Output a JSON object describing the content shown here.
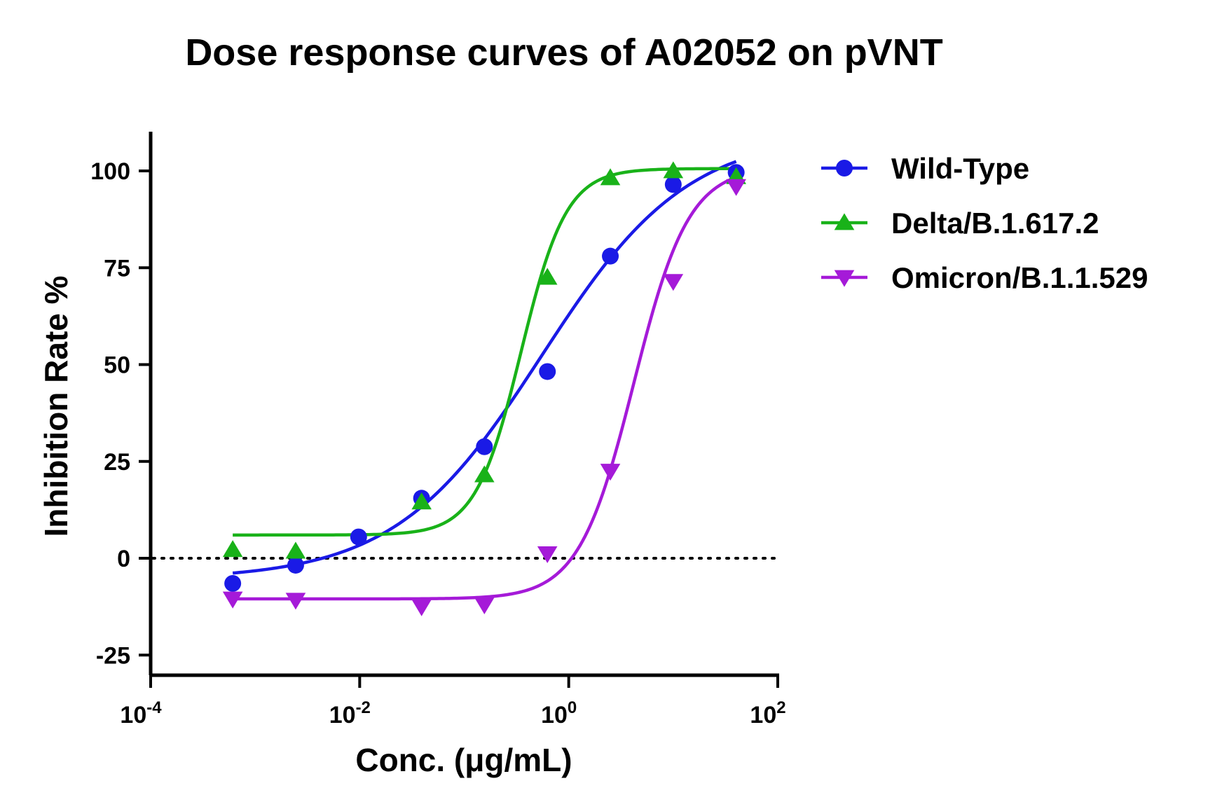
{
  "chart_data": {
    "type": "scatter",
    "title": "Dose response curves of A02052 on pVNT",
    "xlabel": "Conc. (μg/mL)",
    "ylabel": "Inhibition Rate %",
    "xscale": "log",
    "xlim": [
      0.0001,
      100
    ],
    "ylim": [
      -30,
      110
    ],
    "x_ticks": [
      {
        "value": 0.0001,
        "base": "10",
        "exp": "-4"
      },
      {
        "value": 0.01,
        "base": "10",
        "exp": "-2"
      },
      {
        "value": 1,
        "base": "10",
        "exp": "0"
      },
      {
        "value": 100,
        "base": "10",
        "exp": "2"
      }
    ],
    "y_ticks": [
      -25,
      0,
      25,
      50,
      75,
      100
    ],
    "reference_line": {
      "y": 0,
      "style": "dotted"
    },
    "grid": false,
    "legend_position": "right",
    "series": [
      {
        "name": "Wild-Type",
        "color": "#1a1ae6",
        "marker": "circle",
        "x": [
          0.00061,
          0.00244,
          0.00977,
          0.0391,
          0.156,
          0.625,
          2.5,
          10,
          40
        ],
        "y": [
          -6.5,
          -1.8,
          5.5,
          15.5,
          28.8,
          48.2,
          78,
          96.5,
          99.6
        ],
        "fit": {
          "bottom": -5.5,
          "top": 110,
          "ec50": 0.55,
          "hill": 0.62
        }
      },
      {
        "name": "Delta/B.1.617.2",
        "color": "#19b219",
        "marker": "triangle-up",
        "x": [
          0.00061,
          0.00244,
          0.0391,
          0.156,
          0.625,
          2.5,
          10,
          40
        ],
        "y": [
          2.2,
          1.8,
          14.5,
          21.5,
          72.5,
          98.2,
          100,
          98.5
        ],
        "fit": {
          "bottom": 6,
          "top": 100.6,
          "ec50": 0.35,
          "hill": 2.0
        }
      },
      {
        "name": "Omicron/B.1.1.529",
        "color": "#a51ad8",
        "marker": "triangle-down",
        "x": [
          0.00061,
          0.00244,
          0.0391,
          0.156,
          0.625,
          2.5,
          10,
          40
        ],
        "y": [
          -10.5,
          -10.8,
          -12.5,
          -12,
          1.2,
          22.5,
          71.5,
          96
        ],
        "fit": {
          "bottom": -10.5,
          "top": 101,
          "ec50": 4.2,
          "hill": 1.65
        }
      }
    ]
  }
}
